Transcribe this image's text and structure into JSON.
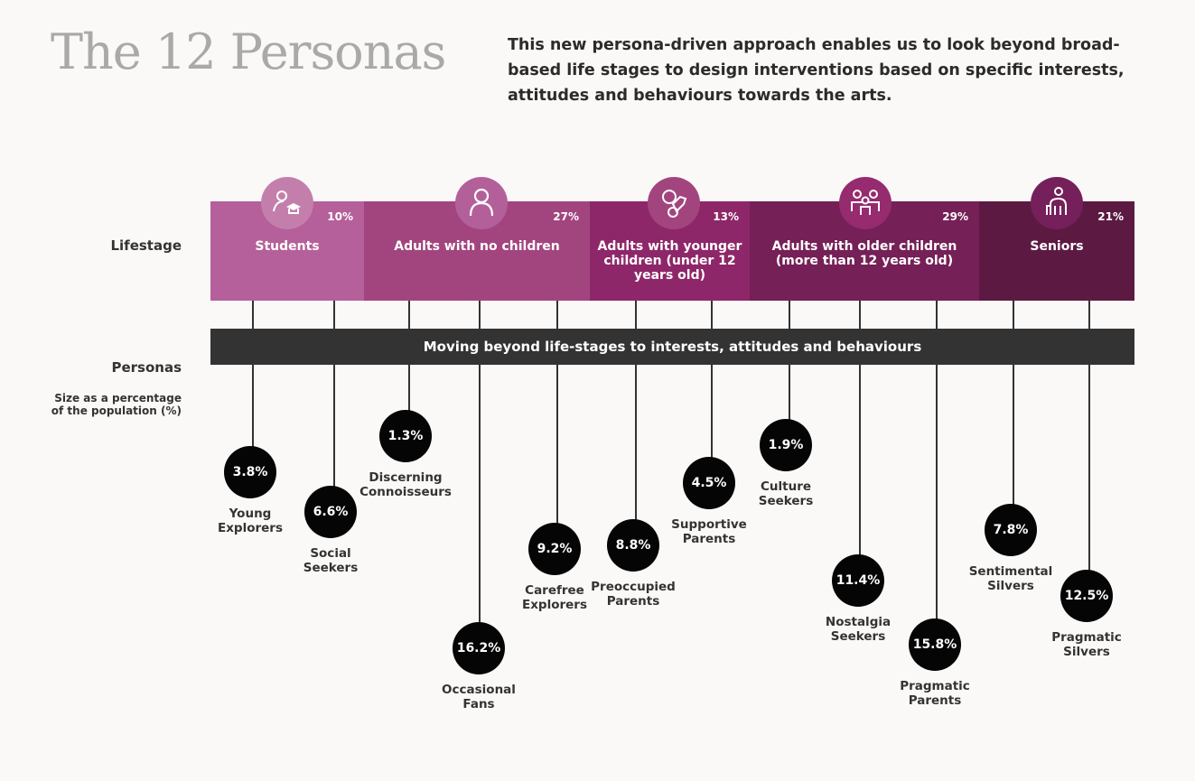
{
  "title": "The 12 Personas",
  "intro": "This new persona-driven approach enables us to look beyond broad-based life stages to design interventions based on specific interests, attitudes and behaviours towards the arts.",
  "labels": {
    "lifestage": "Lifestage",
    "personas": "Personas",
    "size_note": "Size as a percentage of the population (%)"
  },
  "bar_text": "Moving beyond life-stages to interests, attitudes and behaviours",
  "lifestages": [
    {
      "name": "Students",
      "pct": "10%",
      "icon": "student-graduation-cap-icon",
      "color": "#b5609a",
      "icon_color": "#c47eac"
    },
    {
      "name": "Adults with no children",
      "pct": "27%",
      "icon": "person-icon",
      "color": "#a2457f",
      "icon_color": "#b3609a"
    },
    {
      "name": "Adults with younger children (under 12 years old)",
      "pct": "13%",
      "icon": "baby-rattle-icon",
      "color": "#8e2769",
      "icon_color": "#a2457f"
    },
    {
      "name": "Adults with older children (more than 12 years old)",
      "pct": "29%",
      "icon": "family-icon",
      "color": "#752056",
      "icon_color": "#962b6f"
    },
    {
      "name": "Seniors",
      "pct": "21%",
      "icon": "senior-with-cane-icon",
      "color": "#5c1a43",
      "icon_color": "#75205a"
    }
  ],
  "personas": [
    {
      "name": "Young Explorers",
      "pct": "3.8%"
    },
    {
      "name": "Social Seekers",
      "pct": "6.6%"
    },
    {
      "name": "Discerning Connoisseurs",
      "pct": "1.3%"
    },
    {
      "name": "Occasional Fans",
      "pct": "16.2%"
    },
    {
      "name": "Carefree Explorers",
      "pct": "9.2%"
    },
    {
      "name": "Preoccupied Parents",
      "pct": "8.8%"
    },
    {
      "name": "Supportive Parents",
      "pct": "4.5%"
    },
    {
      "name": "Culture Seekers",
      "pct": "1.9%"
    },
    {
      "name": "Nostalgia Seekers",
      "pct": "11.4%"
    },
    {
      "name": "Pragmatic Parents",
      "pct": "15.8%"
    },
    {
      "name": "Sentimental Silvers",
      "pct": "7.8%"
    },
    {
      "name": "Pragmatic Silvers",
      "pct": "12.5%"
    }
  ]
}
